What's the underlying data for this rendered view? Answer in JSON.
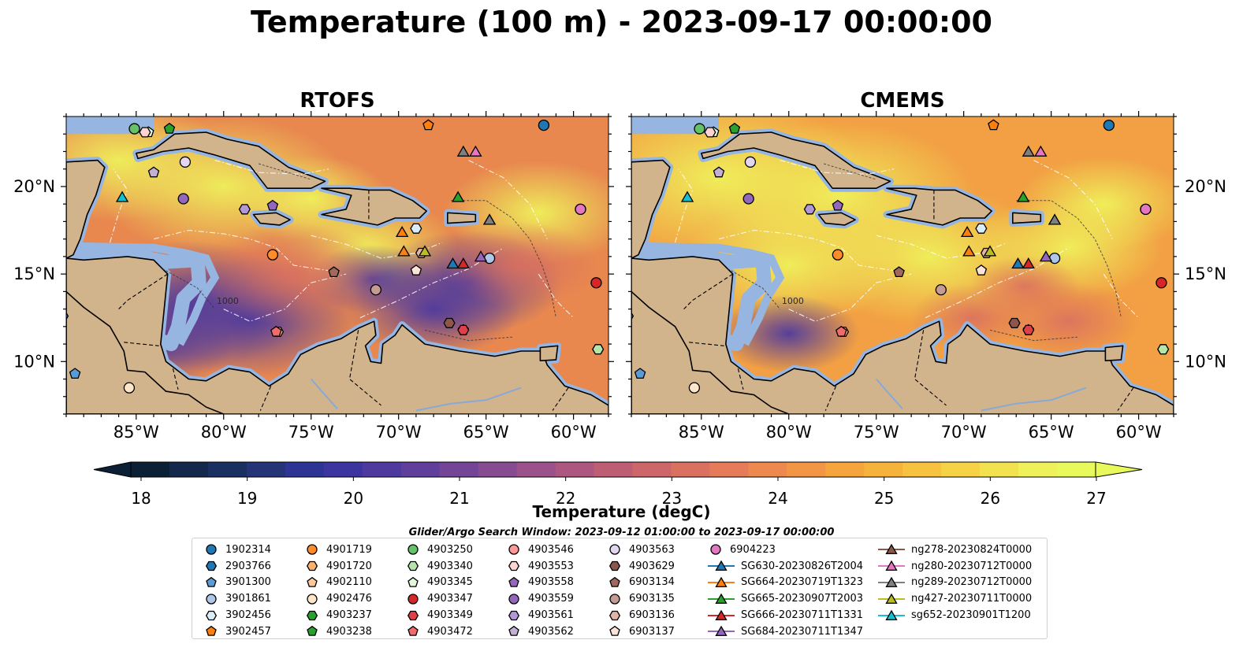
{
  "title": "Temperature (100 m) - 2023-09-17 00:00:00",
  "panels": [
    {
      "title": "RTOFS"
    },
    {
      "title": "CMEMS"
    }
  ],
  "colors": {
    "land": "#d2b48c",
    "shelf": "#96b5e0",
    "deep_sea_left": "#0e2a40"
  },
  "chart_data": {
    "type": "heatmap",
    "map_extent": {
      "lon": [
        -89,
        -58
      ],
      "lat": [
        7,
        24
      ]
    },
    "x_ticks": [
      {
        "value": -85,
        "label": "85°W"
      },
      {
        "value": -80,
        "label": "80°W"
      },
      {
        "value": -75,
        "label": "75°W"
      },
      {
        "value": -70,
        "label": "70°W"
      },
      {
        "value": -65,
        "label": "65°W"
      },
      {
        "value": -60,
        "label": "60°W"
      }
    ],
    "y_ticks": [
      {
        "value": 20,
        "label": "20°N"
      },
      {
        "value": 15,
        "label": "15°N"
      },
      {
        "value": 10,
        "label": "10°N"
      }
    ],
    "contour_labels": [
      "1000",
      "1000"
    ],
    "colorbar": {
      "label": "Temperature (degC)",
      "min": 18,
      "max": 27,
      "extend": "both",
      "ticks": [
        18,
        19,
        20,
        21,
        22,
        23,
        24,
        25,
        26,
        27
      ],
      "colors": [
        "#0b1f35",
        "#13284b",
        "#1a3060",
        "#243477",
        "#2e3493",
        "#3c35a0",
        "#4e3a9e",
        "#5f3e9c",
        "#744497",
        "#874b91",
        "#9b5189",
        "#ad5780",
        "#be5e75",
        "#cd6668",
        "#da7060",
        "#e57b58",
        "#ed884f",
        "#f29646",
        "#f5a43e",
        "#f6b33c",
        "#f6c23f",
        "#f5d246",
        "#f3e24f",
        "#eff15b",
        "#e8fa5b"
      ]
    },
    "search_window": "Glider/Argo Search Window: 2023-09-12 01:00:00 to 2023-09-17 00:00:00",
    "legend": [
      {
        "name": "1902314",
        "marker": "circle",
        "color": "#1f77b4"
      },
      {
        "name": "2903766",
        "marker": "hexagon",
        "color": "#1f77b4"
      },
      {
        "name": "3901300",
        "marker": "pentagon",
        "color": "#5b9bd5"
      },
      {
        "name": "3901861",
        "marker": "circle",
        "color": "#aec7e8"
      },
      {
        "name": "3902456",
        "marker": "hexagon",
        "color": "#d9ecf8"
      },
      {
        "name": "3902457",
        "marker": "pentagon",
        "color": "#ff7f0e"
      },
      {
        "name": "4901719",
        "marker": "circle",
        "color": "#ff8c2a"
      },
      {
        "name": "4901720",
        "marker": "hexagon",
        "color": "#ffb26b"
      },
      {
        "name": "4902110",
        "marker": "pentagon",
        "color": "#ffc89a"
      },
      {
        "name": "4902476",
        "marker": "circle",
        "color": "#fde5c8"
      },
      {
        "name": "4903237",
        "marker": "hexagon",
        "color": "#2ca02c"
      },
      {
        "name": "4903238",
        "marker": "pentagon",
        "color": "#2ca02c"
      },
      {
        "name": "4903250",
        "marker": "circle",
        "color": "#66c266"
      },
      {
        "name": "4903340",
        "marker": "hexagon",
        "color": "#b5e5a8"
      },
      {
        "name": "4903345",
        "marker": "pentagon",
        "color": "#e3f7da"
      },
      {
        "name": "4903347",
        "marker": "circle",
        "color": "#d62728"
      },
      {
        "name": "4903349",
        "marker": "hexagon",
        "color": "#e0404a"
      },
      {
        "name": "4903472",
        "marker": "pentagon",
        "color": "#f06b6b"
      },
      {
        "name": "4903546",
        "marker": "circle",
        "color": "#ff9896"
      },
      {
        "name": "4903553",
        "marker": "hexagon",
        "color": "#ffd3d2"
      },
      {
        "name": "4903558",
        "marker": "pentagon",
        "color": "#9467bd"
      },
      {
        "name": "4903559",
        "marker": "circle",
        "color": "#9467bd"
      },
      {
        "name": "4903561",
        "marker": "hexagon",
        "color": "#b298d6"
      },
      {
        "name": "4903562",
        "marker": "pentagon",
        "color": "#c5b0d5"
      },
      {
        "name": "4903563",
        "marker": "circle",
        "color": "#e3d7f0"
      },
      {
        "name": "4903629",
        "marker": "hexagon",
        "color": "#8c564b"
      },
      {
        "name": "6903134",
        "marker": "pentagon",
        "color": "#a0695d"
      },
      {
        "name": "6903135",
        "marker": "circle",
        "color": "#c49c94"
      },
      {
        "name": "6903136",
        "marker": "hexagon",
        "color": "#e2b4a6"
      },
      {
        "name": "6903137",
        "marker": "pentagon",
        "color": "#fbe3d8"
      },
      {
        "name": "6904223",
        "marker": "circle",
        "color": "#e377c2"
      },
      {
        "name": "SG630-20230826T2004",
        "marker": "triangle",
        "color": "#1f77b4"
      },
      {
        "name": "SG664-20230719T1323",
        "marker": "triangle",
        "color": "#ff7f0e"
      },
      {
        "name": "SG665-20230907T2003",
        "marker": "triangle",
        "color": "#2ca02c"
      },
      {
        "name": "SG666-20230711T1331",
        "marker": "triangle",
        "color": "#d62728"
      },
      {
        "name": "SG684-20230711T1347",
        "marker": "triangle",
        "color": "#9467bd"
      },
      {
        "name": "ng278-20230824T0000",
        "marker": "triangle",
        "color": "#8c564b"
      },
      {
        "name": "ng280-20230712T0000",
        "marker": "triangle",
        "color": "#e377c2"
      },
      {
        "name": "ng289-20230712T0000",
        "marker": "triangle",
        "color": "#7f7f7f"
      },
      {
        "name": "ng427-20230711T0000",
        "marker": "triangle",
        "color": "#bcbd22"
      },
      {
        "name": "sg652-20230901T1200",
        "marker": "triangle",
        "color": "#17becf"
      }
    ],
    "observations": [
      {
        "name": "1902314",
        "lon": -61.7,
        "lat": 23.5
      },
      {
        "name": "2903766",
        "lon": -89.2,
        "lat": 12.6
      },
      {
        "name": "3901300",
        "lon": -88.5,
        "lat": 9.3
      },
      {
        "name": "3901861",
        "lon": -64.8,
        "lat": 15.9
      },
      {
        "name": "3902456",
        "lon": -69.0,
        "lat": 17.6
      },
      {
        "name": "3902457",
        "lon": -68.3,
        "lat": 23.5
      },
      {
        "name": "4901719",
        "lon": -77.2,
        "lat": 16.1
      },
      {
        "name": "4901720",
        "lon": -76.9,
        "lat": 11.7
      },
      {
        "name": "4902110",
        "lon": -66.3,
        "lat": 11.8
      },
      {
        "name": "4902476",
        "lon": -85.4,
        "lat": 8.5
      },
      {
        "name": "4903237",
        "lon": -58.6,
        "lat": 10.7
      },
      {
        "name": "4903238",
        "lon": -83.1,
        "lat": 23.3
      },
      {
        "name": "4903250",
        "lon": -85.1,
        "lat": 23.3
      },
      {
        "name": "4903340",
        "lon": -58.6,
        "lat": 10.7
      },
      {
        "name": "4903345",
        "lon": -84.3,
        "lat": 23.1
      },
      {
        "name": "4903347",
        "lon": -58.7,
        "lat": 14.5
      },
      {
        "name": "4903349",
        "lon": -66.3,
        "lat": 11.8
      },
      {
        "name": "4903472",
        "lon": -77.0,
        "lat": 11.7
      },
      {
        "name": "4903546",
        "lon": -59.6,
        "lat": 18.7
      },
      {
        "name": "4903553",
        "lon": -84.5,
        "lat": 23.1
      },
      {
        "name": "4903558",
        "lon": -77.2,
        "lat": 18.9
      },
      {
        "name": "4903559",
        "lon": -82.3,
        "lat": 19.3
      },
      {
        "name": "4903561",
        "lon": -78.8,
        "lat": 18.7
      },
      {
        "name": "4903562",
        "lon": -84.0,
        "lat": 20.8
      },
      {
        "name": "4903563",
        "lon": -82.2,
        "lat": 21.4
      },
      {
        "name": "4903629",
        "lon": -67.1,
        "lat": 12.2
      },
      {
        "name": "6903134",
        "lon": -73.7,
        "lat": 15.1
      },
      {
        "name": "6903135",
        "lon": -71.3,
        "lat": 14.1
      },
      {
        "name": "6903136",
        "lon": -68.7,
        "lat": 16.2
      },
      {
        "name": "6903137",
        "lon": -69.0,
        "lat": 15.2
      },
      {
        "name": "6904223",
        "lon": -59.6,
        "lat": 18.7
      },
      {
        "name": "SG630-20230826T2004",
        "lon": -66.9,
        "lat": 15.6
      },
      {
        "name": "SG664-20230719T1323",
        "lon": -69.7,
        "lat": 16.3
      },
      {
        "name": "SG664-20230719T1323",
        "lon": -69.8,
        "lat": 17.4
      },
      {
        "name": "SG665-20230907T2003",
        "lon": -66.6,
        "lat": 19.4
      },
      {
        "name": "SG666-20230711T1331",
        "lon": -66.3,
        "lat": 15.6
      },
      {
        "name": "SG684-20230711T1347",
        "lon": -65.3,
        "lat": 16.0
      },
      {
        "name": "ng278-20230824T0000",
        "lon": -64.8,
        "lat": 18.1
      },
      {
        "name": "ng280-20230712T0000",
        "lon": -65.6,
        "lat": 22.0
      },
      {
        "name": "ng289-20230712T0000",
        "lon": -66.3,
        "lat": 22.0
      },
      {
        "name": "ng289-20230712T0000",
        "lon": -64.8,
        "lat": 18.1
      },
      {
        "name": "ng427-20230711T0000",
        "lon": -68.5,
        "lat": 16.3
      },
      {
        "name": "sg652-20230901T1200",
        "lon": -85.8,
        "lat": 19.4
      }
    ]
  }
}
